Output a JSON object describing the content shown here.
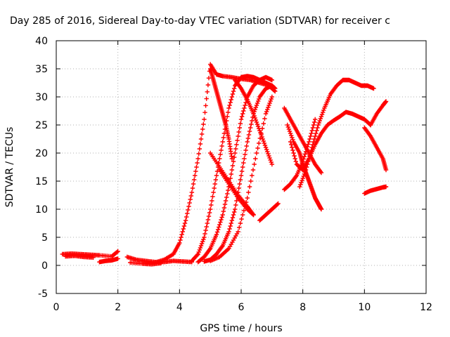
{
  "chart_data": {
    "type": "scatter",
    "title": "Day 285 of 2016, Sidereal Day-to-day VTEC variation (SDTVAR) for receiver c",
    "xlabel": "GPS time / hours",
    "ylabel": "SDTVAR / TECUs",
    "xlim": [
      0,
      12
    ],
    "ylim": [
      -5,
      40
    ],
    "xticks": [
      "0",
      "2",
      "4",
      "6",
      "8",
      "10",
      "12"
    ],
    "yticks": [
      "-5",
      "0",
      "5",
      "10",
      "15",
      "20",
      "25",
      "30",
      "35",
      "40"
    ],
    "grid": true,
    "marker": "+",
    "color": "#ff0000",
    "series": [
      {
        "x": [
          0.2,
          0.5,
          0.8,
          1.1,
          1.4,
          1.8,
          2.0
        ],
        "y": [
          2.0,
          2.1,
          2.0,
          1.9,
          1.8,
          1.6,
          2.5
        ]
      },
      {
        "x": [
          0.3,
          0.6,
          0.9,
          1.2
        ],
        "y": [
          1.6,
          1.7,
          1.5,
          1.4
        ]
      },
      {
        "x": [
          1.4,
          1.6,
          1.8,
          2.0
        ],
        "y": [
          0.6,
          0.8,
          0.9,
          1.2
        ]
      },
      {
        "x": [
          2.3,
          2.6,
          2.9,
          3.2,
          3.5,
          3.8,
          4.1,
          4.4
        ],
        "y": [
          1.5,
          1.0,
          0.8,
          0.6,
          0.6,
          0.8,
          0.7,
          0.6
        ]
      },
      {
        "x": [
          2.4,
          2.8,
          3.1,
          3.4
        ],
        "y": [
          0.5,
          0.3,
          0.2,
          0.4
        ]
      },
      {
        "x": [
          3.2,
          3.5,
          3.8,
          4.0,
          4.2,
          4.4,
          4.6,
          4.8,
          5.0,
          5.2,
          5.4,
          5.7,
          6.0,
          6.3,
          6.6,
          6.9,
          7.1
        ],
        "y": [
          0.5,
          1.0,
          2.0,
          4.0,
          8.0,
          13.0,
          19.0,
          26.0,
          35.8,
          34.0,
          33.7,
          33.5,
          33.2,
          33.0,
          32.5,
          32.0,
          31.0
        ]
      },
      {
        "x": [
          5.0,
          5.1,
          5.2,
          5.3,
          5.4,
          5.5,
          5.6,
          5.7
        ],
        "y": [
          35.0,
          33.0,
          31.0,
          29.0,
          27.0,
          25.0,
          22.5,
          19.0
        ]
      },
      {
        "x": [
          4.4,
          4.6,
          4.8,
          5.0,
          5.2,
          5.4,
          5.6,
          5.8,
          6.0,
          6.2,
          6.4,
          6.6,
          6.8,
          7.0,
          7.1
        ],
        "y": [
          0.8,
          2.0,
          5.0,
          10.0,
          16.0,
          22.0,
          28.0,
          32.0,
          33.5,
          33.7,
          33.5,
          33.0,
          32.5,
          32.0,
          31.5
        ]
      },
      {
        "x": [
          5.8,
          6.0,
          6.2,
          6.4,
          6.6,
          6.8,
          7.0
        ],
        "y": [
          33.0,
          31.5,
          29.5,
          27.0,
          24.0,
          21.0,
          18.0
        ]
      },
      {
        "x": [
          4.6,
          4.8,
          5.0,
          5.2,
          5.4,
          5.6,
          5.8,
          6.0,
          6.2,
          6.4,
          6.6,
          6.8,
          7.0
        ],
        "y": [
          0.6,
          1.5,
          3.0,
          5.5,
          9.0,
          14.0,
          20.0,
          26.0,
          30.0,
          32.0,
          33.0,
          33.5,
          33.0
        ]
      },
      {
        "x": [
          4.8,
          5.0,
          5.2,
          5.4,
          5.6,
          5.8,
          6.0,
          6.2,
          6.4,
          6.6,
          6.8,
          7.0
        ],
        "y": [
          0.7,
          1.0,
          2.0,
          3.5,
          6.0,
          10.0,
          16.0,
          22.0,
          27.0,
          30.0,
          31.5,
          32.0
        ]
      },
      {
        "x": [
          5.0,
          5.3,
          5.6,
          5.9,
          6.2,
          6.5,
          6.8,
          7.0
        ],
        "y": [
          0.8,
          1.5,
          3.0,
          6.0,
          12.0,
          20.0,
          27.0,
          30.0
        ]
      },
      {
        "x": [
          5.0,
          5.3,
          5.6,
          5.9,
          6.2,
          6.4
        ],
        "y": [
          20.0,
          17.5,
          15.0,
          12.5,
          10.5,
          9.0
        ]
      },
      {
        "x": [
          5.3,
          5.6,
          5.9,
          6.2,
          6.4
        ],
        "y": [
          17.0,
          14.5,
          12.0,
          10.0,
          9.0
        ]
      },
      {
        "x": [
          6.6,
          6.8,
          7.0,
          7.2
        ],
        "y": [
          8.0,
          9.0,
          10.0,
          11.0
        ]
      },
      {
        "x": [
          7.4,
          7.6,
          7.8,
          8.0,
          8.2,
          8.4
        ],
        "y": [
          13.5,
          14.5,
          16.0,
          18.5,
          22.0,
          26.0
        ]
      },
      {
        "x": [
          7.5,
          7.7,
          7.9,
          8.0,
          8.1,
          8.2,
          8.3,
          8.4,
          8.5,
          8.6
        ],
        "y": [
          25.0,
          22.0,
          20.0,
          18.0,
          16.5,
          15.0,
          13.5,
          12.0,
          11.0,
          10.0
        ]
      },
      {
        "x": [
          7.4,
          7.6,
          7.8,
          8.0,
          8.2,
          8.4,
          8.6
        ],
        "y": [
          28.0,
          26.0,
          24.0,
          22.0,
          20.0,
          18.0,
          16.5
        ]
      },
      {
        "x": [
          7.6,
          7.8,
          8.0,
          8.2,
          8.4,
          8.6,
          8.8,
          9.0,
          9.2,
          9.4,
          9.6,
          9.8,
          10.0,
          10.2
        ],
        "y": [
          22.0,
          18.0,
          17.0,
          19.0,
          21.5,
          23.5,
          25.0,
          25.8,
          26.5,
          27.3,
          27.0,
          26.5,
          26.0,
          25.0
        ]
      },
      {
        "x": [
          7.9,
          8.1,
          8.3,
          8.5,
          8.7,
          8.9,
          9.1,
          9.3,
          9.5,
          9.7,
          9.9,
          10.1,
          10.3
        ],
        "y": [
          14.0,
          17.0,
          21.0,
          25.0,
          28.0,
          30.5,
          32.0,
          33.0,
          33.0,
          32.5,
          32.0,
          32.0,
          31.5
        ]
      },
      {
        "x": [
          10.0,
          10.2,
          10.4,
          10.6,
          10.7
        ],
        "y": [
          24.5,
          23.0,
          21.0,
          19.0,
          17.0
        ]
      },
      {
        "x": [
          10.0,
          10.2,
          10.4,
          10.6,
          10.7
        ],
        "y": [
          12.8,
          13.3,
          13.6,
          13.9,
          14.0
        ]
      },
      {
        "x": [
          10.2,
          10.4,
          10.6,
          10.7
        ],
        "y": [
          25.0,
          27.0,
          28.5,
          29.2
        ]
      }
    ]
  }
}
